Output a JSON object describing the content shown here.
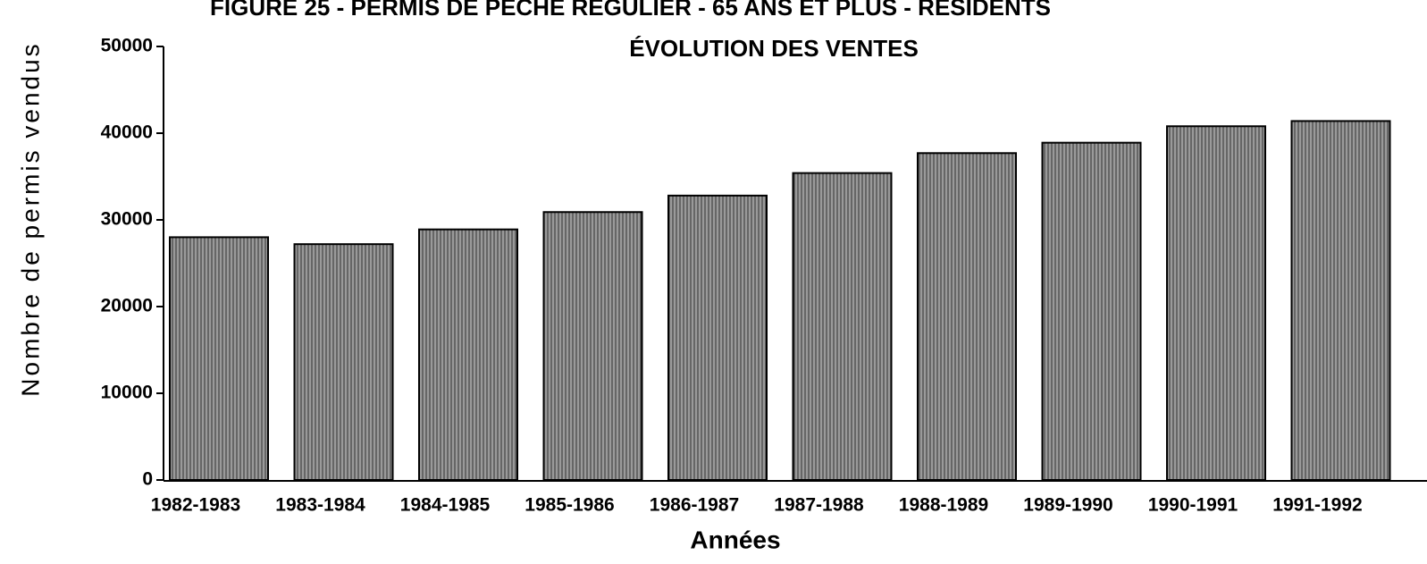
{
  "chart_data": {
    "type": "bar",
    "title": "FIGURE 25 - PERMIS DE PÊCHE RÉGULIER - 65 ANS ET PLUS - RÉSIDENTS",
    "subtitle": "ÉVOLUTION DES VENTES",
    "x_label": "Années",
    "y_label": "Nombre de permis vendus",
    "categories": [
      "1982-1983",
      "1983-1984",
      "1984-1985",
      "1985-1986",
      "1986-1987",
      "1987-1988",
      "1988-1989",
      "1989-1990",
      "1990-1991",
      "1991-1992"
    ],
    "values": [
      28000,
      27200,
      28900,
      30900,
      32800,
      35400,
      37700,
      38900,
      40800,
      41400
    ],
    "color": "#8c8c8c",
    "ylim": [
      0,
      50000
    ],
    "yticks": [
      0,
      10000,
      20000,
      30000,
      40000,
      50000
    ],
    "grid": false
  }
}
